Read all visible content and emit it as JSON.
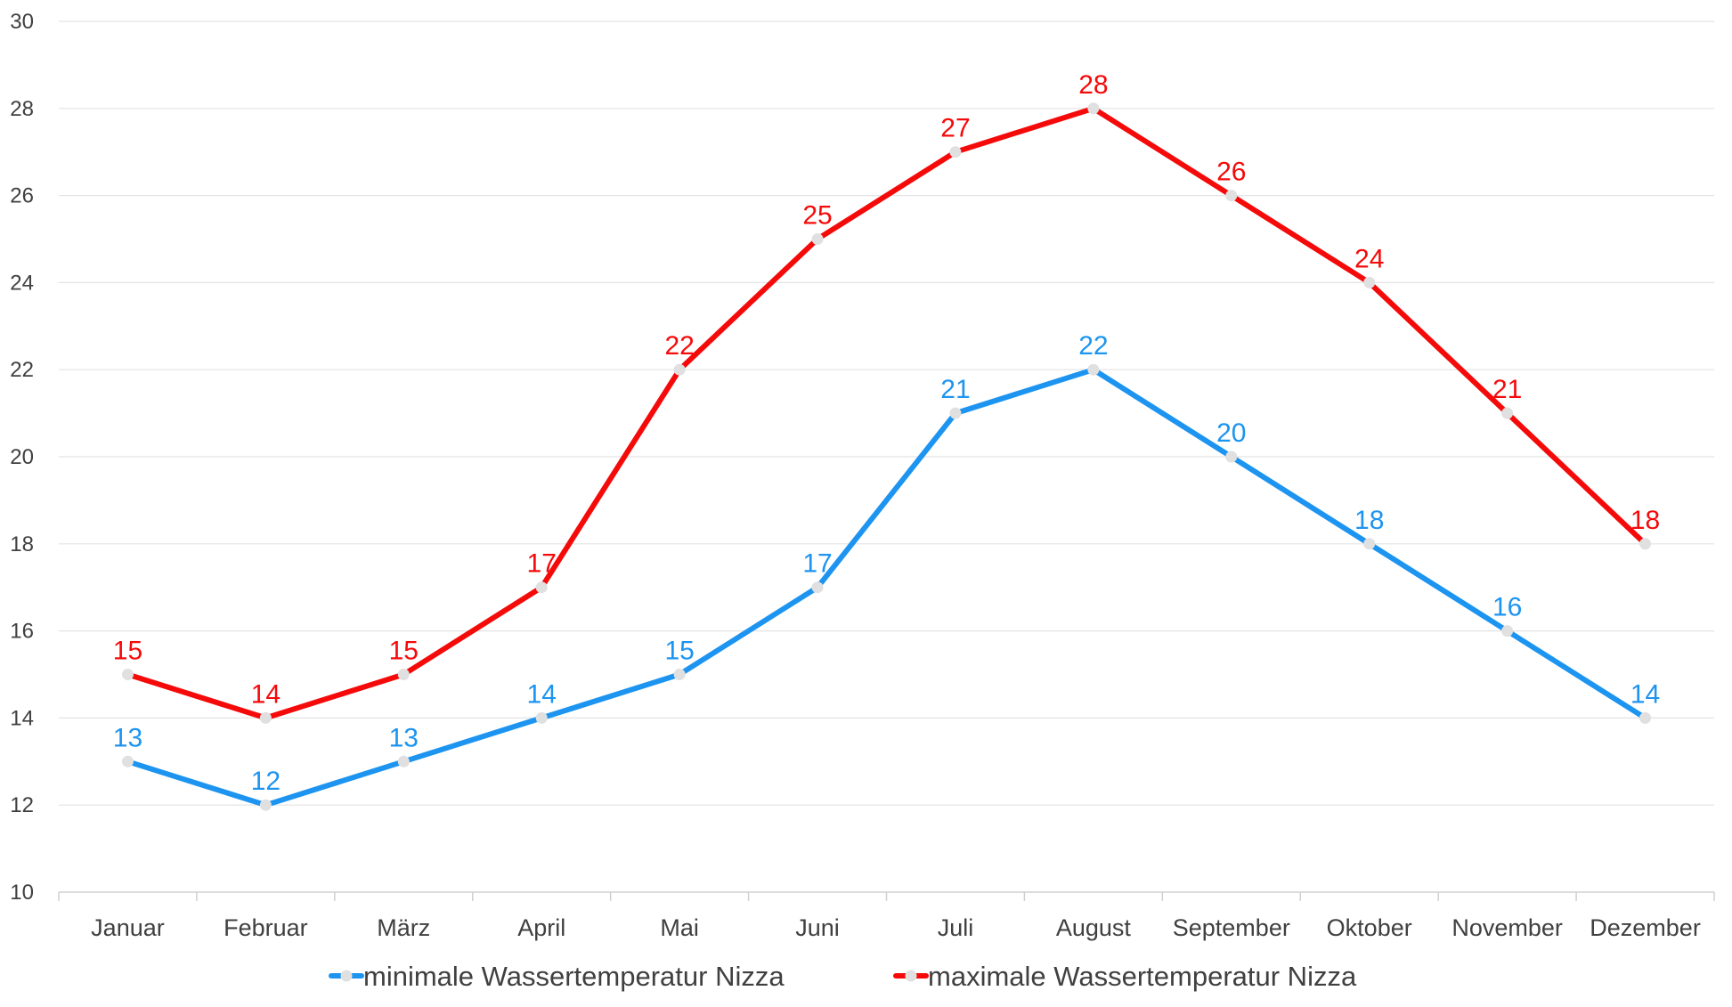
{
  "chart_data": {
    "type": "line",
    "title": "",
    "xlabel": "",
    "ylabel": "",
    "categories": [
      "Januar",
      "Februar",
      "März",
      "April",
      "Mai",
      "Juni",
      "Juli",
      "August",
      "September",
      "Oktober",
      "November",
      "Dezember"
    ],
    "ylim": [
      10,
      30
    ],
    "yticks": [
      10,
      12,
      14,
      16,
      18,
      20,
      22,
      24,
      26,
      28,
      30
    ],
    "grid": true,
    "legend_position": "bottom",
    "data_labels": true,
    "marker_color": "#e0e0e0",
    "series": [
      {
        "name": "minimale Wassertemperatur Nizza",
        "color": "#1c94f0",
        "values": [
          13,
          12,
          13,
          14,
          15,
          17,
          21,
          22,
          20,
          18,
          16,
          14
        ]
      },
      {
        "name": "maximale Wassertemperatur Nizza",
        "color": "#f50a0a",
        "values": [
          15,
          14,
          15,
          17,
          22,
          25,
          27,
          28,
          26,
          24,
          21,
          18
        ]
      }
    ]
  }
}
